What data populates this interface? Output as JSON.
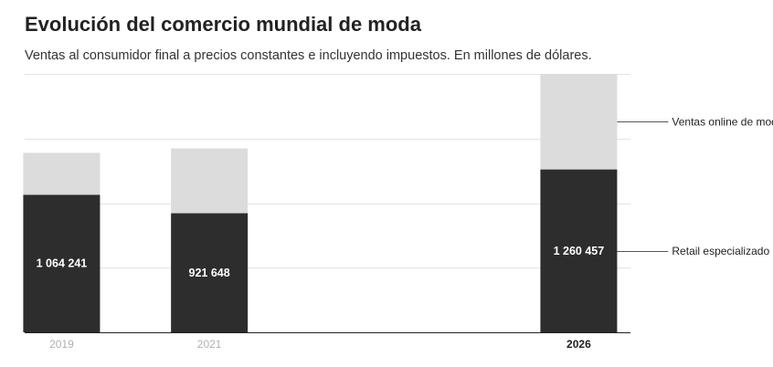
{
  "header": {
    "title": "Evolución del comercio mundial de moda",
    "subtitle": "Ventas al consumidor final a precios constantes e incluyendo impuestos. En millones de dólares."
  },
  "colors": {
    "online": "#dcdcdc",
    "retail": "#2d2d2d"
  },
  "chart_data": {
    "type": "bar",
    "stacked": true,
    "title": "Evolución del comercio mundial de moda",
    "subtitle": "Ventas al consumidor final a precios constantes e incluyendo impuestos. En millones de dólares.",
    "categories": [
      "2019",
      "2021",
      "2026"
    ],
    "x": [
      2019,
      2021,
      2026
    ],
    "highlight_category": "2026",
    "series": [
      {
        "name": "Retail especializado",
        "values": [
          1064241,
          921648,
          1260457
        ],
        "value_labels": [
          "1 064 241",
          "921 648",
          "1 260 457"
        ],
        "color": "#2d2d2d"
      },
      {
        "name": "Ventas online de moda",
        "values": [
          325000,
          502000,
          740000
        ],
        "color": "#dcdcdc"
      }
    ],
    "ylim": [
      0,
      2000000
    ],
    "grid": true,
    "legend_placement": "right (direct labels)"
  }
}
